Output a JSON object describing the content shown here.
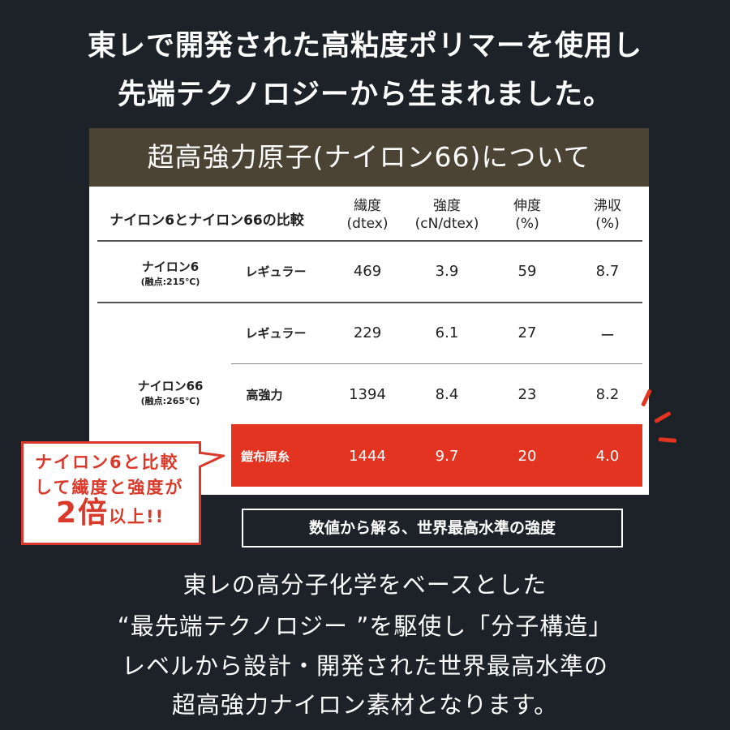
{
  "headline": [
    "東レで開発された高粘度ポリマーを使用し",
    "先端テクノロジーから生まれました。"
  ],
  "section_title": "超高強力原子(ナイロン66)について",
  "table": {
    "caption": "ナイロン6とナイロン66の比較",
    "columns": [
      {
        "name": "繊度",
        "unit": "(dtex)"
      },
      {
        "name": "強度",
        "unit": "(cN/dtex)"
      },
      {
        "name": "伸度",
        "unit": "(%)"
      },
      {
        "name": "沸収",
        "unit": "(%)"
      }
    ],
    "groups": [
      {
        "name": "ナイロン6",
        "note": "(融点:215℃)"
      },
      {
        "name": "ナイロン66",
        "note": "(融点:265℃)"
      }
    ],
    "rows": [
      {
        "type": "レギュラー",
        "values": [
          "469",
          "3.9",
          "59",
          "8.7"
        ]
      },
      {
        "type": "レギュラー",
        "values": [
          "229",
          "6.1",
          "27",
          "ー"
        ]
      },
      {
        "type": "高強力",
        "values": [
          "1394",
          "8.4",
          "23",
          "8.2"
        ]
      },
      {
        "type": "鎧布原糸",
        "values": [
          "1444",
          "9.7",
          "20",
          "4.0"
        ],
        "highlight": true
      }
    ]
  },
  "callout": {
    "line1": "ナイロン6と比較",
    "line2": "して繊度と強度が",
    "big": "2倍",
    "suffix": "以上!!"
  },
  "box_label": "数値から解る、世界最高水準の強度",
  "body_text": [
    "東レの高分子化学をベースとした",
    "“最先端テクノロジー ”を駆使し「分子構造」",
    "レベルから設計・開発された世界最高水準の",
    "超高強力ナイロン素材となります。"
  ],
  "colors": {
    "background": "#1c2228",
    "band": "#4b4434",
    "highlight": "#e23420"
  }
}
